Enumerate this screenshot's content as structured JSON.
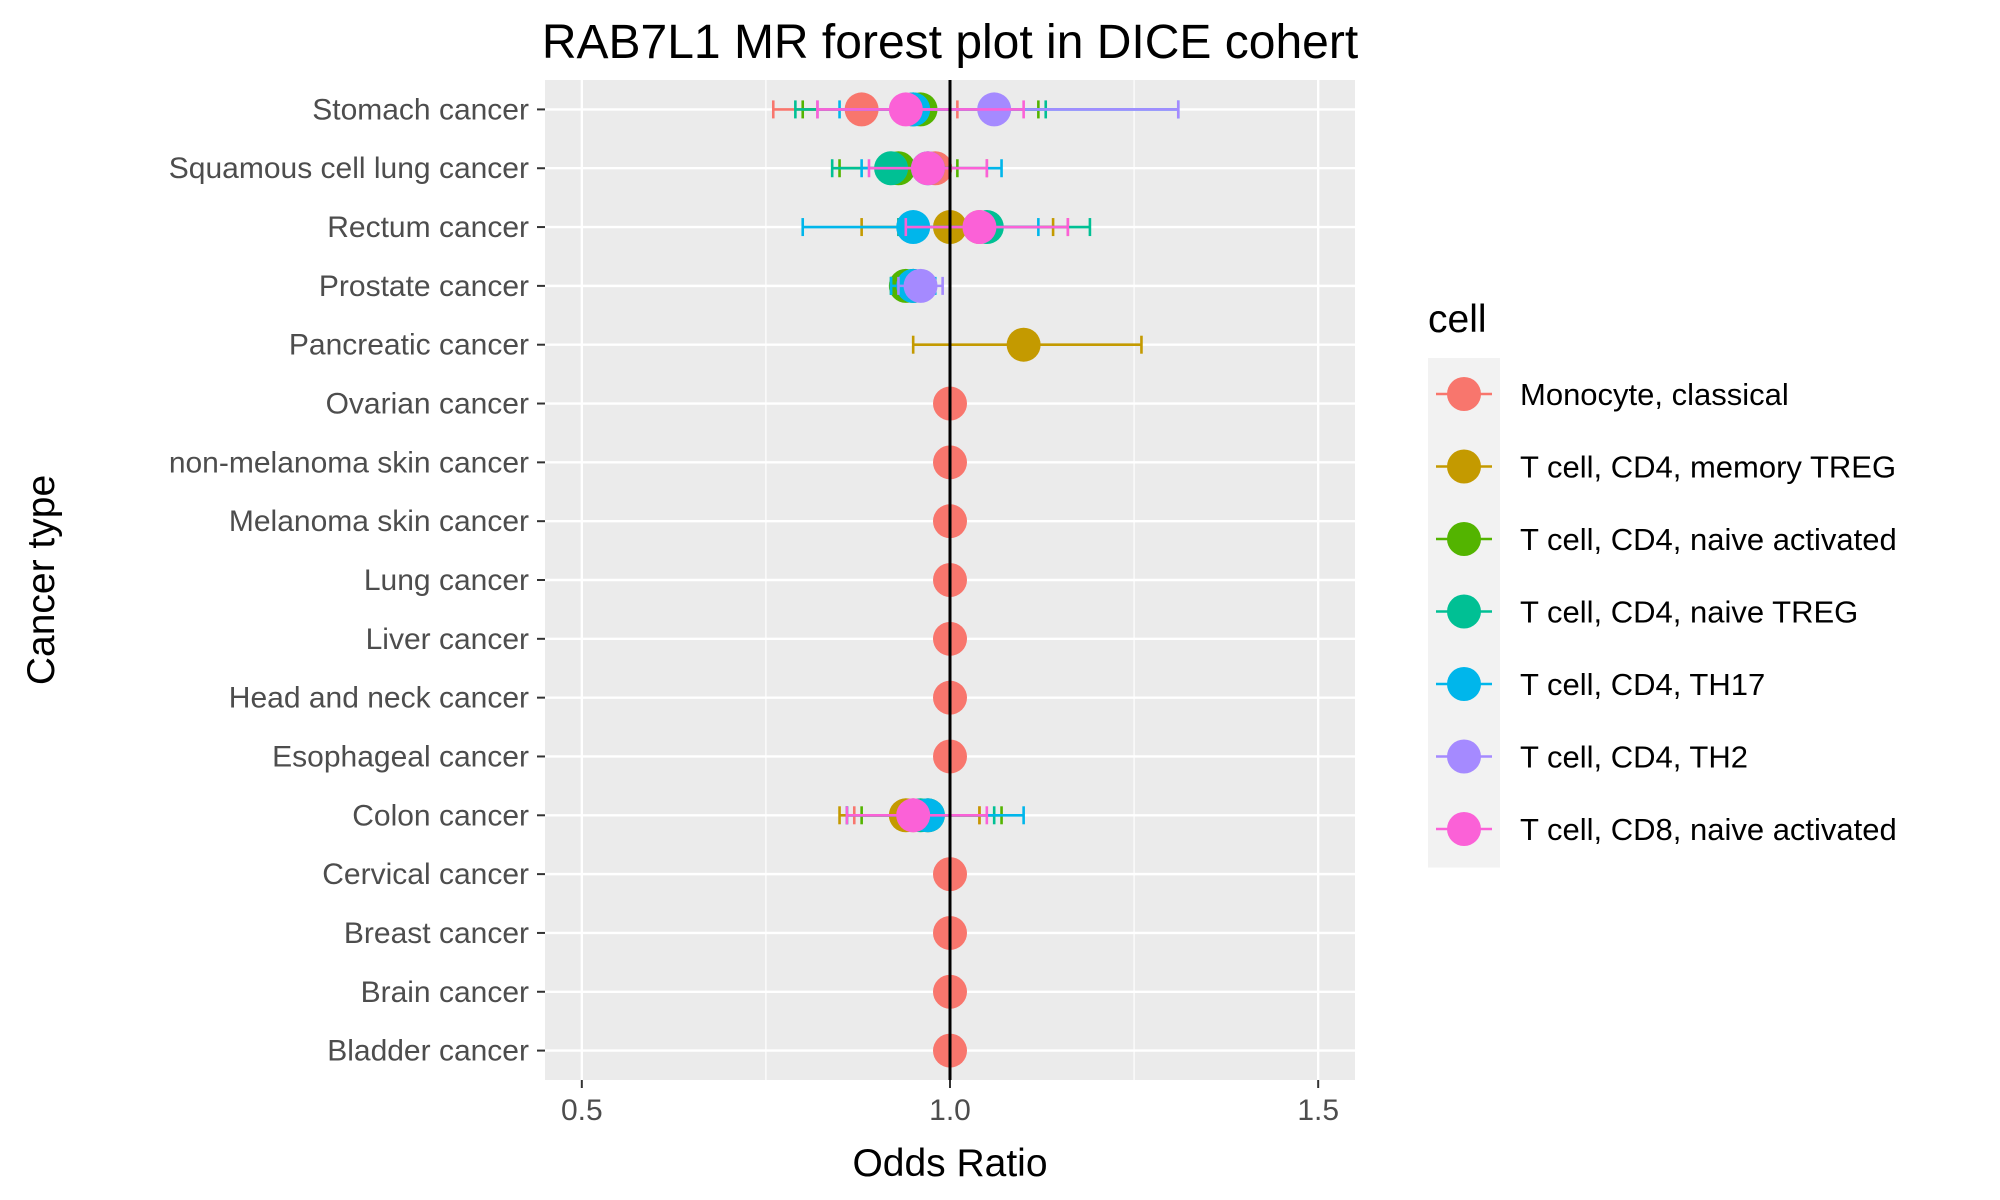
{
  "chart_data": {
    "type": "forest",
    "title": "RAB7L1 MR forest plot in DICE cohert",
    "xlabel": "Odds Ratio",
    "ylabel": "Cancer type",
    "xlim": [
      0.45,
      1.55
    ],
    "x_ticks": [
      0.5,
      1.0,
      1.5
    ],
    "x_tick_labels": [
      "0.5",
      "1.0",
      "1.5"
    ],
    "reference_line": 1.0,
    "grid": true,
    "legend": {
      "title": "cell",
      "position": "right"
    },
    "categories": [
      "Bladder cancer",
      "Brain cancer",
      "Breast cancer",
      "Cervical cancer",
      "Colon cancer",
      "Esophageal cancer",
      "Head and neck cancer",
      "Liver cancer",
      "Lung cancer",
      "Melanoma skin cancer",
      "non-melanoma skin cancer",
      "Ovarian cancer",
      "Pancreatic cancer",
      "Prostate cancer",
      "Rectum cancer",
      "Squamous cell lung cancer",
      "Stomach cancer"
    ],
    "series": [
      {
        "name": "Monocyte, classical",
        "color": "#F8766D",
        "points": [
          {
            "category": "Bladder cancer",
            "or": 1.0,
            "low": 1.0,
            "high": 1.0
          },
          {
            "category": "Brain cancer",
            "or": 1.0,
            "low": 1.0,
            "high": 1.0
          },
          {
            "category": "Breast cancer",
            "or": 1.0,
            "low": 1.0,
            "high": 1.0
          },
          {
            "category": "Cervical cancer",
            "or": 1.0,
            "low": 1.0,
            "high": 1.0
          },
          {
            "category": "Colon cancer",
            "or": 0.95,
            "low": 0.87,
            "high": 1.04
          },
          {
            "category": "Esophageal cancer",
            "or": 1.0,
            "low": 1.0,
            "high": 1.0
          },
          {
            "category": "Head and neck cancer",
            "or": 1.0,
            "low": 1.0,
            "high": 1.0
          },
          {
            "category": "Liver cancer",
            "or": 1.0,
            "low": 1.0,
            "high": 1.0
          },
          {
            "category": "Lung cancer",
            "or": 1.0,
            "low": 1.0,
            "high": 1.0
          },
          {
            "category": "Melanoma skin cancer",
            "or": 1.0,
            "low": 1.0,
            "high": 1.0
          },
          {
            "category": "non-melanoma skin cancer",
            "or": 1.0,
            "low": 1.0,
            "high": 1.0
          },
          {
            "category": "Ovarian cancer",
            "or": 1.0,
            "low": 1.0,
            "high": 1.0
          },
          {
            "category": "Prostate cancer",
            "or": 0.95,
            "low": 0.93,
            "high": 0.97
          },
          {
            "category": "Rectum cancer",
            "or": 1.04,
            "low": 0.93,
            "high": 1.16
          },
          {
            "category": "Squamous cell lung cancer",
            "or": 0.98,
            "low": 0.91,
            "high": 1.05
          },
          {
            "category": "Stomach cancer",
            "or": 0.88,
            "low": 0.76,
            "high": 1.01
          }
        ]
      },
      {
        "name": "T cell, CD4, memory TREG",
        "color": "#C49A00",
        "points": [
          {
            "category": "Colon cancer",
            "or": 0.94,
            "low": 0.85,
            "high": 1.04
          },
          {
            "category": "Pancreatic cancer",
            "or": 1.1,
            "low": 0.95,
            "high": 1.26
          },
          {
            "category": "Rectum cancer",
            "or": 1.0,
            "low": 0.88,
            "high": 1.14
          }
        ]
      },
      {
        "name": "T cell, CD4, naive activated",
        "color": "#53B400",
        "points": [
          {
            "category": "Colon cancer",
            "or": 0.97,
            "low": 0.88,
            "high": 1.07
          },
          {
            "category": "Prostate cancer",
            "or": 0.94,
            "low": 0.92,
            "high": 0.96
          },
          {
            "category": "Squamous cell lung cancer",
            "or": 0.93,
            "low": 0.85,
            "high": 1.01
          },
          {
            "category": "Stomach cancer",
            "or": 0.96,
            "low": 0.8,
            "high": 1.12
          }
        ]
      },
      {
        "name": "T cell, CD4, naive TREG",
        "color": "#00C094",
        "points": [
          {
            "category": "Colon cancer",
            "or": 0.96,
            "low": 0.86,
            "high": 1.06
          },
          {
            "category": "Prostate cancer",
            "or": 0.95,
            "low": 0.92,
            "high": 0.97
          },
          {
            "category": "Rectum cancer",
            "or": 1.05,
            "low": 0.93,
            "high": 1.19
          },
          {
            "category": "Squamous cell lung cancer",
            "or": 0.92,
            "low": 0.84,
            "high": 1.0
          },
          {
            "category": "Stomach cancer",
            "or": 0.95,
            "low": 0.79,
            "high": 1.13
          }
        ]
      },
      {
        "name": "T cell, CD4, TH17",
        "color": "#00B6EB",
        "points": [
          {
            "category": "Colon cancer",
            "or": 0.97,
            "low": 0.86,
            "high": 1.1
          },
          {
            "category": "Prostate cancer",
            "or": 0.95,
            "low": 0.92,
            "high": 0.98
          },
          {
            "category": "Rectum cancer",
            "or": 0.95,
            "low": 0.8,
            "high": 1.12
          },
          {
            "category": "Squamous cell lung cancer",
            "or": 0.97,
            "low": 0.88,
            "high": 1.07
          },
          {
            "category": "Stomach cancer",
            "or": 0.95,
            "low": 0.85,
            "high": 1.31
          }
        ]
      },
      {
        "name": "T cell, CD4, TH2",
        "color": "#A58AFF",
        "points": [
          {
            "category": "Prostate cancer",
            "or": 0.96,
            "low": 0.93,
            "high": 0.99
          },
          {
            "category": "Stomach cancer",
            "or": 1.06,
            "low": 0.82,
            "high": 1.31
          }
        ]
      },
      {
        "name": "T cell, CD8, naive activated",
        "color": "#FB61D7",
        "points": [
          {
            "category": "Colon cancer",
            "or": 0.95,
            "low": 0.86,
            "high": 1.05
          },
          {
            "category": "Rectum cancer",
            "or": 1.04,
            "low": 0.94,
            "high": 1.16
          },
          {
            "category": "Squamous cell lung cancer",
            "or": 0.97,
            "low": 0.89,
            "high": 1.05
          },
          {
            "category": "Stomach cancer",
            "or": 0.94,
            "low": 0.82,
            "high": 1.1
          }
        ]
      }
    ]
  }
}
